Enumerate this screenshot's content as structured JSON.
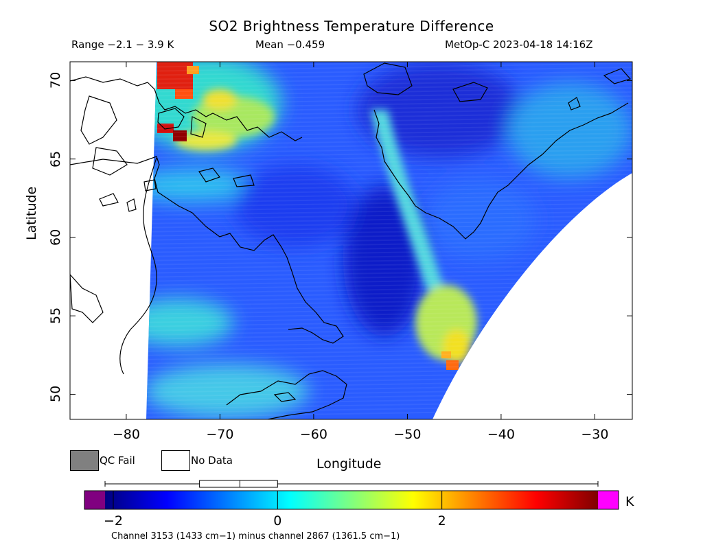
{
  "title": "SO2 Brightness Temperature Difference",
  "range_text": "Range −2.1 − 3.9 K",
  "mean_text": "Mean −0.459",
  "satellite_text": "MetOp-C 2023-04-18 14:16Z",
  "xlabel": "Longitude",
  "ylabel": "Latitude",
  "x_ticks": [
    "−80",
    "−70",
    "−60",
    "−50",
    "−40",
    "−30"
  ],
  "y_ticks": [
    "70",
    "65",
    "60",
    "55",
    "50"
  ],
  "legend": {
    "qc_fail": "QC Fail",
    "no_data": "No Data"
  },
  "colorbar": {
    "unit": "K",
    "ticks": [
      "−2",
      "0",
      "2"
    ],
    "min": -2.1,
    "max": 3.9,
    "mean": -0.459,
    "box_quartiles": [
      -0.95,
      0.0
    ]
  },
  "caption": "Channel 3153 (1433 cm−1) minus channel 2867 (1361.5 cm−1)",
  "colors": {
    "qc_fail": "#808080",
    "below_range": "#800080",
    "above_range": "#ff00ff"
  },
  "chart_data": {
    "type": "heatmap",
    "xlim": [
      -86,
      -26
    ],
    "ylim": [
      48.4,
      71.2
    ],
    "x_tick_values": [
      -80,
      -70,
      -60,
      -50,
      -40,
      -30
    ],
    "y_tick_values": [
      70,
      65,
      60,
      55,
      50
    ],
    "colormap": "jet",
    "value_range": [
      -2.1,
      3.9
    ],
    "features": [
      {
        "name": "high-band-west",
        "lon": -72,
        "lat": 67.5,
        "value": 1.5
      },
      {
        "name": "hot-spot-hudson",
        "lon": -75,
        "lat": 69.5,
        "value": 3.5
      },
      {
        "name": "low-band",
        "lon": -53,
        "lat": 58.5,
        "value": -1.8
      },
      {
        "name": "moderate-band-greenland-west",
        "lon": -52,
        "lat": 62,
        "value": 0.6
      },
      {
        "name": "high-patch-southeast",
        "lon": -46,
        "lat": 53,
        "value": 2.2
      }
    ]
  }
}
